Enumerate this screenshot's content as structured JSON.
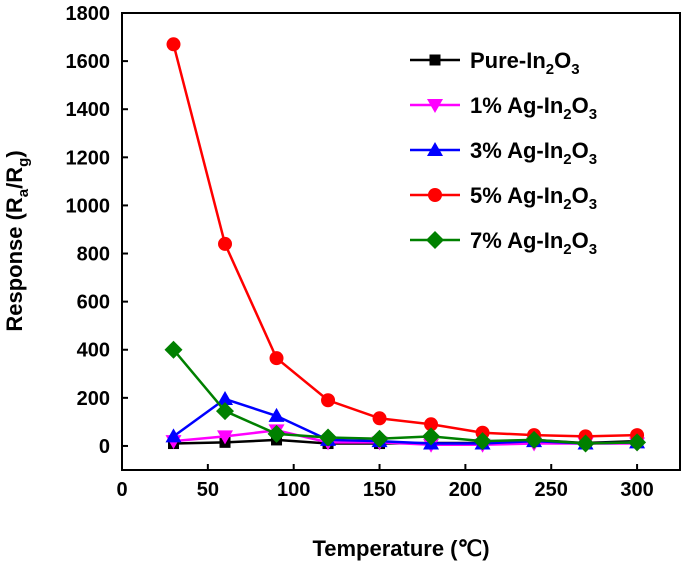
{
  "chart_data": {
    "type": "line",
    "xlabel": "Temperature (℃)",
    "ylabel": {
      "main": "Response (R",
      "sub1": "a",
      "mid": "/R",
      "sub2": "g",
      "end": ")"
    },
    "xlim": [
      0,
      325
    ],
    "ylim": [
      -100,
      1800
    ],
    "xticks": [
      0,
      50,
      100,
      150,
      200,
      250,
      300
    ],
    "yticks": [
      0,
      200,
      400,
      600,
      800,
      1000,
      1200,
      1400,
      1600,
      1800
    ],
    "legend_position": "top-right",
    "grid": false,
    "x": [
      30,
      60,
      90,
      120,
      150,
      180,
      210,
      240,
      270,
      300
    ],
    "series": [
      {
        "name": "Pure-In2O3",
        "color": "#000000",
        "marker": "square",
        "values": [
          10,
          15,
          25,
          10,
          10,
          12,
          12,
          25,
          12,
          20
        ]
      },
      {
        "name": "1% Ag-In2O3",
        "color": "#ff00ff",
        "marker": "triangle-down",
        "values": [
          20,
          40,
          65,
          15,
          15,
          5,
          5,
          10,
          10,
          10
        ]
      },
      {
        "name": "3% Ag-In2O3",
        "color": "#0000ff",
        "marker": "triangle-up",
        "values": [
          40,
          195,
          125,
          25,
          20,
          10,
          10,
          20,
          10,
          15
        ]
      },
      {
        "name": "5% Ag-In2O3",
        "color": "#ff0000",
        "marker": "circle",
        "values": [
          1670,
          840,
          365,
          190,
          115,
          90,
          55,
          45,
          40,
          45
        ]
      },
      {
        "name": "7% Ag-In2O3",
        "color": "#008000",
        "marker": "diamond",
        "values": [
          400,
          145,
          50,
          35,
          30,
          40,
          20,
          25,
          10,
          15
        ]
      }
    ]
  }
}
